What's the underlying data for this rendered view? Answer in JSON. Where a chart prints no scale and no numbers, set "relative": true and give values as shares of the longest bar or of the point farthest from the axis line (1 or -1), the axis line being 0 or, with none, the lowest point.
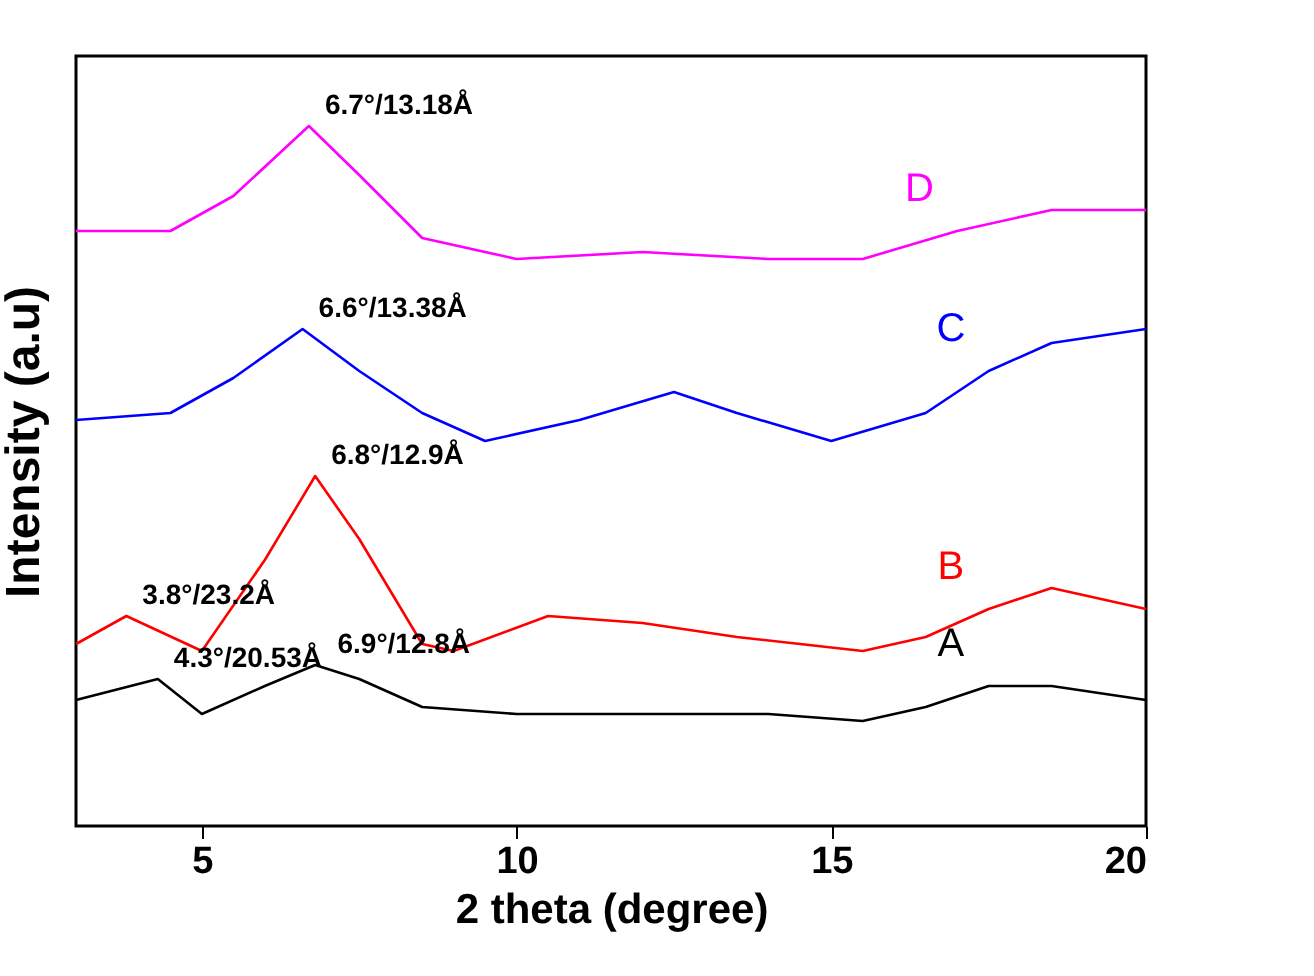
{
  "chart_data": {
    "type": "line",
    "xlabel": "2 theta (degree)",
    "ylabel": "Intensity (a.u)",
    "relative": true,
    "xlim": [
      3,
      20
    ],
    "xticks": [
      5,
      10,
      15,
      20
    ],
    "legend": false,
    "grid": false,
    "series": [
      {
        "name": "A",
        "color": "#000000",
        "x": [
          3,
          4.3,
          5,
          6,
          6.8,
          7.5,
          8.5,
          10,
          12,
          14,
          15.5,
          16.5,
          17.5,
          18.5,
          20
        ],
        "values": [
          0.18,
          0.21,
          0.16,
          0.2,
          0.23,
          0.21,
          0.17,
          0.16,
          0.16,
          0.16,
          0.15,
          0.17,
          0.2,
          0.2,
          0.18
        ]
      },
      {
        "name": "B",
        "color": "#ff0000",
        "x": [
          3,
          3.8,
          5,
          6,
          6.8,
          7.5,
          8.5,
          9,
          10.5,
          12,
          13.5,
          15.5,
          16.5,
          17.5,
          18.5,
          20
        ],
        "values": [
          0.26,
          0.3,
          0.25,
          0.38,
          0.5,
          0.41,
          0.26,
          0.25,
          0.3,
          0.29,
          0.27,
          0.25,
          0.27,
          0.31,
          0.34,
          0.31
        ]
      },
      {
        "name": "C",
        "color": "#0000ff",
        "x": [
          3,
          4.5,
          5.5,
          6.6,
          7.5,
          8.5,
          9.5,
          11,
          12.5,
          13.5,
          15,
          16.5,
          17.5,
          18.5,
          20
        ],
        "values": [
          0.58,
          0.59,
          0.64,
          0.71,
          0.65,
          0.59,
          0.55,
          0.58,
          0.62,
          0.59,
          0.55,
          0.59,
          0.65,
          0.69,
          0.71
        ]
      },
      {
        "name": "D",
        "color": "#ff00ff",
        "x": [
          3,
          4.5,
          5.5,
          6.7,
          7.5,
          8.5,
          10,
          12,
          14,
          15.5,
          17,
          18.5,
          20
        ],
        "values": [
          0.85,
          0.85,
          0.9,
          1,
          0.93,
          0.84,
          0.81,
          0.82,
          0.81,
          0.81,
          0.85,
          0.88,
          0.88
        ]
      }
    ],
    "annotations": [
      {
        "text": "6.7°/13.18Å",
        "x": 6.7,
        "y": 1
      },
      {
        "text": "6.6°/13.38Å",
        "x": 6.6,
        "y": 0.71
      },
      {
        "text": "6.8°/12.9Å",
        "x": 6.8,
        "y": 0.5
      },
      {
        "text": "3.8°/23.2Å",
        "x": 3.8,
        "y": 0.3
      },
      {
        "text": "4.3°/20.53Å",
        "x": 4.3,
        "y": 0.21
      },
      {
        "text": "6.9°/12.8Å",
        "x": 6.9,
        "y": 0.23
      }
    ]
  }
}
